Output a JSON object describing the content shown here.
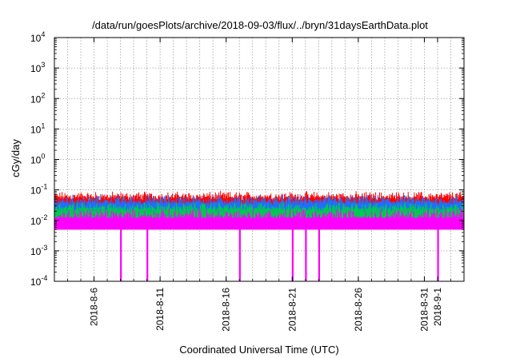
{
  "chart_data": {
    "type": "area",
    "title": "/data/run/goesPlots/archive/2018-09-03/flux/../bryn/31daysEarthData.plot",
    "xlabel": "Coordinated Universal Time (UTC)",
    "ylabel": "cGy/day",
    "yscale": "log",
    "ylim": [
      0.0001,
      10000
    ],
    "y_ticks": [
      {
        "base": "10",
        "exp": "4",
        "value": 10000
      },
      {
        "base": "10",
        "exp": "3",
        "value": 1000
      },
      {
        "base": "10",
        "exp": "2",
        "value": 100
      },
      {
        "base": "10",
        "exp": "1",
        "value": 10
      },
      {
        "base": "10",
        "exp": "0",
        "value": 1
      },
      {
        "base": "10",
        "exp": "-1",
        "value": 0.1
      },
      {
        "base": "10",
        "exp": "-2",
        "value": 0.01
      },
      {
        "base": "10",
        "exp": "-3",
        "value": 0.001
      },
      {
        "base": "10",
        "exp": "-4",
        "value": 0.0001
      }
    ],
    "xlim": [
      "2018-08-03",
      "2018-09-03"
    ],
    "x_ticks": [
      {
        "label": "2018-8-6",
        "date": "2018-08-06"
      },
      {
        "label": "2018-8-11",
        "date": "2018-08-11"
      },
      {
        "label": "2018-8-16",
        "date": "2018-08-16"
      },
      {
        "label": "2018-8-21",
        "date": "2018-08-21"
      },
      {
        "label": "2018-8-26",
        "date": "2018-08-26"
      },
      {
        "label": "2018-8-31",
        "date": "2018-08-31"
      },
      {
        "label": "2018-9-1",
        "date": "2018-09-01"
      }
    ],
    "grid": true,
    "series": [
      {
        "color": "#ff0000",
        "typical_value": 0.06,
        "peak_value": 0.09
      },
      {
        "color": "#1f6fff",
        "typical_value": 0.04,
        "peak_value": 0.07
      },
      {
        "color": "#00c853",
        "typical_value": 0.025,
        "peak_value": 0.04
      },
      {
        "color": "#ff00ff",
        "typical_value": 0.012,
        "peak_value": 0.025,
        "floor_value": 0.005
      }
    ],
    "dropouts": [
      {
        "date": "2018-08-08",
        "value": 0.0001
      },
      {
        "date": "2018-08-10",
        "value": 0.0001
      },
      {
        "date": "2018-08-17",
        "value": 0.0001
      },
      {
        "date": "2018-08-21",
        "value": 0.0001
      },
      {
        "date": "2018-08-22",
        "value": 0.0001
      },
      {
        "date": "2018-08-23",
        "value": 0.0001
      },
      {
        "date": "2018-09-01",
        "value": 0.0001
      }
    ]
  }
}
